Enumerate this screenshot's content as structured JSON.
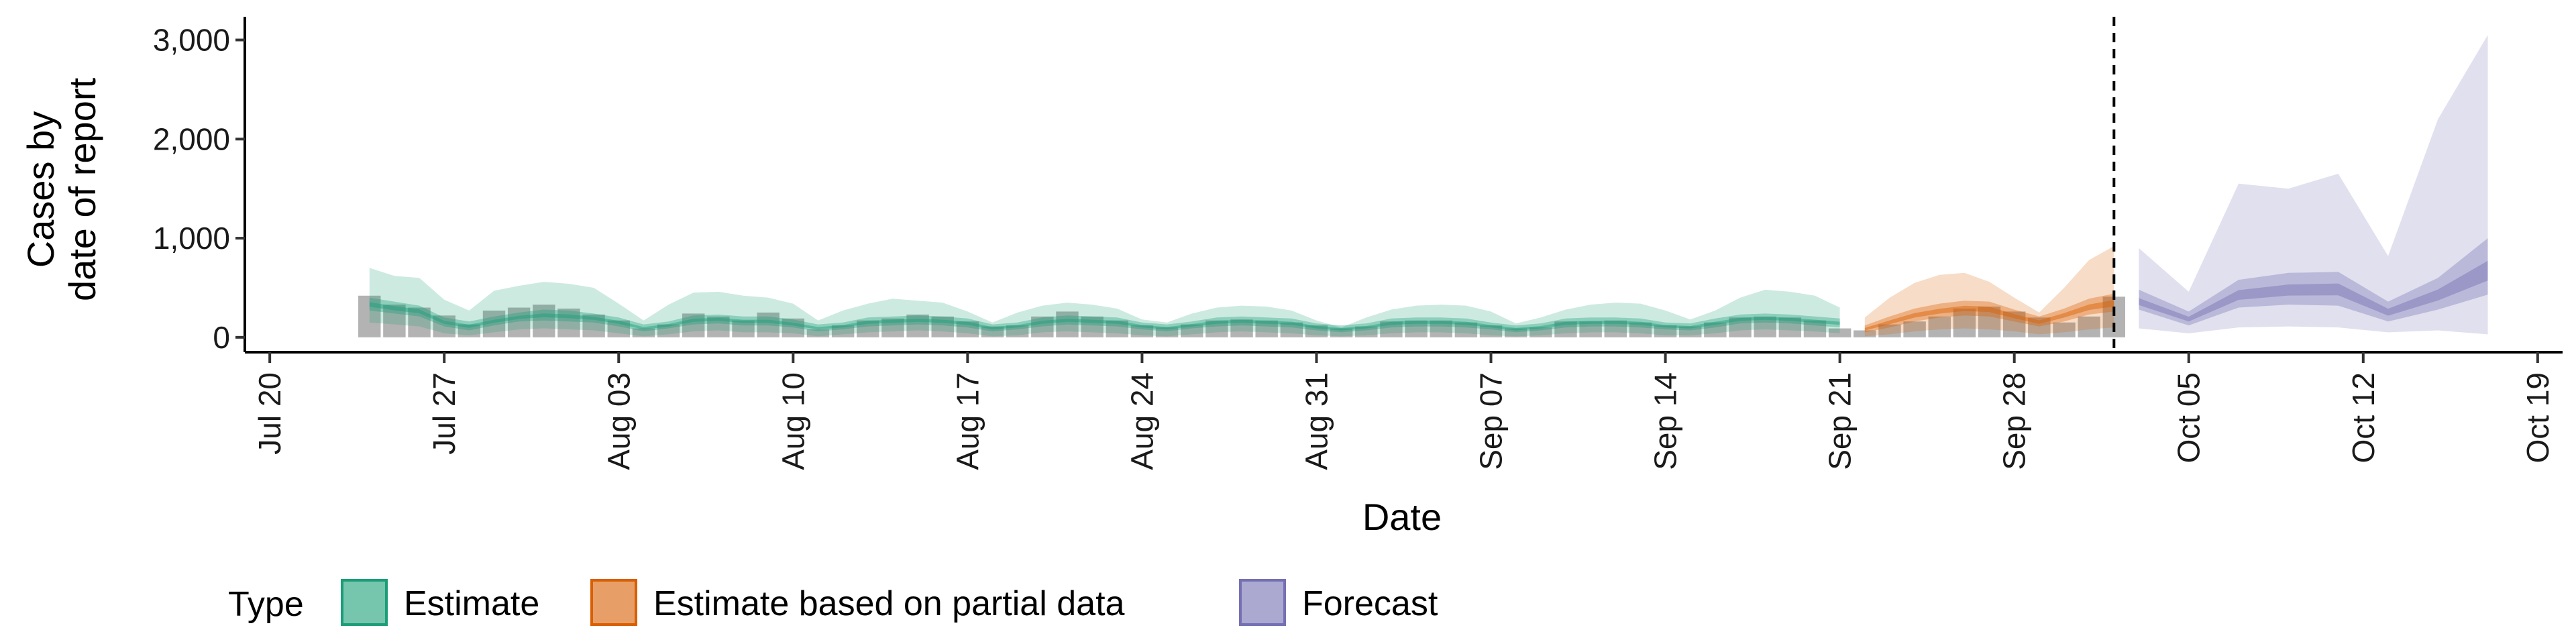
{
  "chart_data": {
    "type": "area",
    "title": "",
    "xlabel": "Date",
    "ylabel_lines": [
      "Cases by",
      "date of report"
    ],
    "x_range": [
      "2020-07-19",
      "2020-10-20"
    ],
    "ylim": [
      -150,
      3200
    ],
    "y_ticks": [
      {
        "value": 0,
        "label": "0"
      },
      {
        "value": 1000,
        "label": "1,000"
      },
      {
        "value": 2000,
        "label": "2,000"
      },
      {
        "value": 3000,
        "label": "3,000"
      }
    ],
    "x_ticks": [
      {
        "date": "2020-07-20",
        "label": "Jul 20"
      },
      {
        "date": "2020-07-27",
        "label": "Jul 27"
      },
      {
        "date": "2020-08-03",
        "label": "Aug 03"
      },
      {
        "date": "2020-08-10",
        "label": "Aug 10"
      },
      {
        "date": "2020-08-17",
        "label": "Aug 17"
      },
      {
        "date": "2020-08-24",
        "label": "Aug 24"
      },
      {
        "date": "2020-08-31",
        "label": "Aug 31"
      },
      {
        "date": "2020-09-07",
        "label": "Sep 07"
      },
      {
        "date": "2020-09-14",
        "label": "Sep 14"
      },
      {
        "date": "2020-09-21",
        "label": "Sep 21"
      },
      {
        "date": "2020-09-28",
        "label": "Sep 28"
      },
      {
        "date": "2020-10-05",
        "label": "Oct 05"
      },
      {
        "date": "2020-10-12",
        "label": "Oct 12"
      },
      {
        "date": "2020-10-19",
        "label": "Oct 19"
      }
    ],
    "grid": false,
    "vline_date": "2020-10-02",
    "legend": {
      "title": "Type",
      "position": "bottom-left",
      "items": [
        {
          "label": "Estimate",
          "color": "#1b9e77"
        },
        {
          "label": "Estimate based on partial data",
          "color": "#d95f02"
        },
        {
          "label": "Forecast",
          "color": "#7570b3"
        }
      ]
    },
    "reported_cases": {
      "color": "#a6a6a6",
      "dates": [
        "2020-07-24",
        "2020-07-25",
        "2020-07-26",
        "2020-07-27",
        "2020-07-28",
        "2020-07-29",
        "2020-07-30",
        "2020-07-31",
        "2020-08-01",
        "2020-08-02",
        "2020-08-03",
        "2020-08-04",
        "2020-08-05",
        "2020-08-06",
        "2020-08-07",
        "2020-08-08",
        "2020-08-09",
        "2020-08-10",
        "2020-08-11",
        "2020-08-12",
        "2020-08-13",
        "2020-08-14",
        "2020-08-15",
        "2020-08-16",
        "2020-08-17",
        "2020-08-18",
        "2020-08-19",
        "2020-08-20",
        "2020-08-21",
        "2020-08-22",
        "2020-08-23",
        "2020-08-24",
        "2020-08-25",
        "2020-08-26",
        "2020-08-27",
        "2020-08-28",
        "2020-08-29",
        "2020-08-30",
        "2020-08-31",
        "2020-09-01",
        "2020-09-02",
        "2020-09-03",
        "2020-09-04",
        "2020-09-05",
        "2020-09-06",
        "2020-09-07",
        "2020-09-08",
        "2020-09-09",
        "2020-09-10",
        "2020-09-11",
        "2020-09-12",
        "2020-09-13",
        "2020-09-14",
        "2020-09-15",
        "2020-09-16",
        "2020-09-17",
        "2020-09-18",
        "2020-09-19",
        "2020-09-20",
        "2020-09-21",
        "2020-09-22",
        "2020-09-23",
        "2020-09-24",
        "2020-09-25",
        "2020-09-26",
        "2020-09-27",
        "2020-09-28",
        "2020-09-29",
        "2020-09-30",
        "2020-10-01",
        "2020-10-02"
      ],
      "values": [
        420,
        330,
        300,
        220,
        130,
        270,
        300,
        330,
        290,
        230,
        170,
        90,
        130,
        240,
        210,
        170,
        250,
        190,
        80,
        120,
        170,
        190,
        230,
        210,
        160,
        110,
        120,
        210,
        260,
        210,
        170,
        120,
        100,
        130,
        170,
        180,
        170,
        150,
        120,
        90,
        110,
        160,
        170,
        170,
        150,
        120,
        90,
        100,
        160,
        160,
        170,
        150,
        120,
        110,
        150,
        200,
        210,
        200,
        170,
        90,
        70,
        130,
        160,
        210,
        290,
        310,
        260,
        200,
        150,
        210,
        410
      ]
    },
    "series": [
      {
        "name": "Estimate",
        "color": "#1b9e77",
        "dates": [
          "2020-07-24",
          "2020-07-25",
          "2020-07-26",
          "2020-07-27",
          "2020-07-28",
          "2020-07-29",
          "2020-07-30",
          "2020-07-31",
          "2020-08-01",
          "2020-08-02",
          "2020-08-03",
          "2020-08-04",
          "2020-08-05",
          "2020-08-06",
          "2020-08-07",
          "2020-08-08",
          "2020-08-09",
          "2020-08-10",
          "2020-08-11",
          "2020-08-12",
          "2020-08-13",
          "2020-08-14",
          "2020-08-15",
          "2020-08-16",
          "2020-08-17",
          "2020-08-18",
          "2020-08-19",
          "2020-08-20",
          "2020-08-21",
          "2020-08-22",
          "2020-08-23",
          "2020-08-24",
          "2020-08-25",
          "2020-08-26",
          "2020-08-27",
          "2020-08-28",
          "2020-08-29",
          "2020-08-30",
          "2020-08-31",
          "2020-09-01",
          "2020-09-02",
          "2020-09-03",
          "2020-09-04",
          "2020-09-05",
          "2020-09-06",
          "2020-09-07",
          "2020-09-08",
          "2020-09-09",
          "2020-09-10",
          "2020-09-11",
          "2020-09-12",
          "2020-09-13",
          "2020-09-14",
          "2020-09-15",
          "2020-09-16",
          "2020-09-17",
          "2020-09-18",
          "2020-09-19",
          "2020-09-20",
          "2020-09-21"
        ],
        "median": [
          330,
          290,
          260,
          150,
          110,
          160,
          200,
          220,
          210,
          190,
          150,
          90,
          120,
          170,
          180,
          160,
          160,
          130,
          90,
          110,
          150,
          160,
          170,
          160,
          140,
          90,
          110,
          150,
          170,
          160,
          150,
          110,
          90,
          120,
          150,
          160,
          150,
          140,
          100,
          80,
          100,
          140,
          150,
          150,
          140,
          110,
          80,
          100,
          140,
          150,
          150,
          140,
          110,
          100,
          140,
          180,
          190,
          180,
          160,
          140
        ],
        "q25": [
          270,
          240,
          210,
          110,
          70,
          120,
          160,
          170,
          160,
          150,
          110,
          60,
          90,
          130,
          140,
          120,
          120,
          100,
          60,
          80,
          110,
          120,
          130,
          120,
          100,
          60,
          80,
          110,
          130,
          120,
          110,
          80,
          60,
          90,
          110,
          120,
          110,
          100,
          70,
          50,
          70,
          100,
          110,
          110,
          100,
          80,
          50,
          70,
          100,
          110,
          110,
          100,
          80,
          70,
          100,
          140,
          150,
          140,
          120,
          100
        ],
        "q75": [
          400,
          360,
          320,
          200,
          160,
          210,
          250,
          280,
          270,
          240,
          200,
          130,
          160,
          220,
          230,
          210,
          210,
          180,
          130,
          150,
          200,
          210,
          220,
          210,
          190,
          130,
          150,
          200,
          220,
          210,
          200,
          150,
          130,
          160,
          200,
          210,
          200,
          190,
          140,
          120,
          140,
          190,
          200,
          200,
          190,
          150,
          120,
          140,
          190,
          200,
          200,
          190,
          150,
          140,
          190,
          230,
          240,
          230,
          210,
          190
        ],
        "q5": [
          150,
          130,
          110,
          40,
          20,
          50,
          80,
          90,
          80,
          70,
          40,
          10,
          30,
          60,
          70,
          50,
          50,
          40,
          10,
          30,
          50,
          60,
          70,
          60,
          40,
          10,
          20,
          50,
          60,
          50,
          40,
          20,
          10,
          30,
          50,
          60,
          50,
          40,
          20,
          10,
          20,
          40,
          50,
          50,
          40,
          20,
          10,
          20,
          40,
          50,
          50,
          40,
          20,
          20,
          40,
          70,
          80,
          70,
          60,
          40
        ],
        "q95": [
          700,
          620,
          600,
          380,
          270,
          470,
          520,
          560,
          540,
          500,
          340,
          170,
          330,
          450,
          460,
          420,
          400,
          340,
          170,
          270,
          340,
          390,
          370,
          350,
          260,
          150,
          250,
          320,
          350,
          330,
          290,
          180,
          150,
          240,
          300,
          320,
          310,
          270,
          170,
          100,
          200,
          280,
          320,
          330,
          320,
          260,
          140,
          200,
          280,
          330,
          350,
          340,
          270,
          180,
          270,
          400,
          480,
          460,
          420,
          300
        ]
      },
      {
        "name": "Estimate based on partial data",
        "color": "#d95f02",
        "dates": [
          "2020-09-22",
          "2020-09-23",
          "2020-09-24",
          "2020-09-25",
          "2020-09-26",
          "2020-09-27",
          "2020-09-28",
          "2020-09-29",
          "2020-09-30",
          "2020-10-01",
          "2020-10-02"
        ],
        "median": [
          80,
          150,
          220,
          260,
          290,
          280,
          210,
          150,
          220,
          300,
          340
        ],
        "q25": [
          50,
          100,
          160,
          200,
          220,
          210,
          160,
          110,
          160,
          230,
          260
        ],
        "q75": [
          120,
          210,
          290,
          340,
          370,
          360,
          280,
          210,
          290,
          390,
          440
        ],
        "q5": [
          10,
          30,
          60,
          80,
          90,
          80,
          60,
          30,
          50,
          80,
          100
        ],
        "q95": [
          200,
          400,
          550,
          630,
          650,
          560,
          400,
          250,
          500,
          780,
          920
        ]
      },
      {
        "name": "Forecast",
        "color": "#7570b3",
        "dates": [
          "2020-10-03",
          "2020-10-05",
          "2020-10-07",
          "2020-10-09",
          "2020-10-11",
          "2020-10-13",
          "2020-10-15",
          "2020-10-17"
        ],
        "median": [
          350,
          180,
          420,
          470,
          480,
          250,
          420,
          650
        ],
        "q25": [
          280,
          120,
          300,
          330,
          320,
          160,
          280,
          430
        ],
        "q75": [
          480,
          260,
          580,
          650,
          660,
          360,
          600,
          1000
        ],
        "q5": [
          90,
          40,
          100,
          110,
          100,
          50,
          70,
          30
        ],
        "q95": [
          900,
          460,
          1550,
          1500,
          1650,
          820,
          2200,
          3050
        ]
      }
    ]
  }
}
